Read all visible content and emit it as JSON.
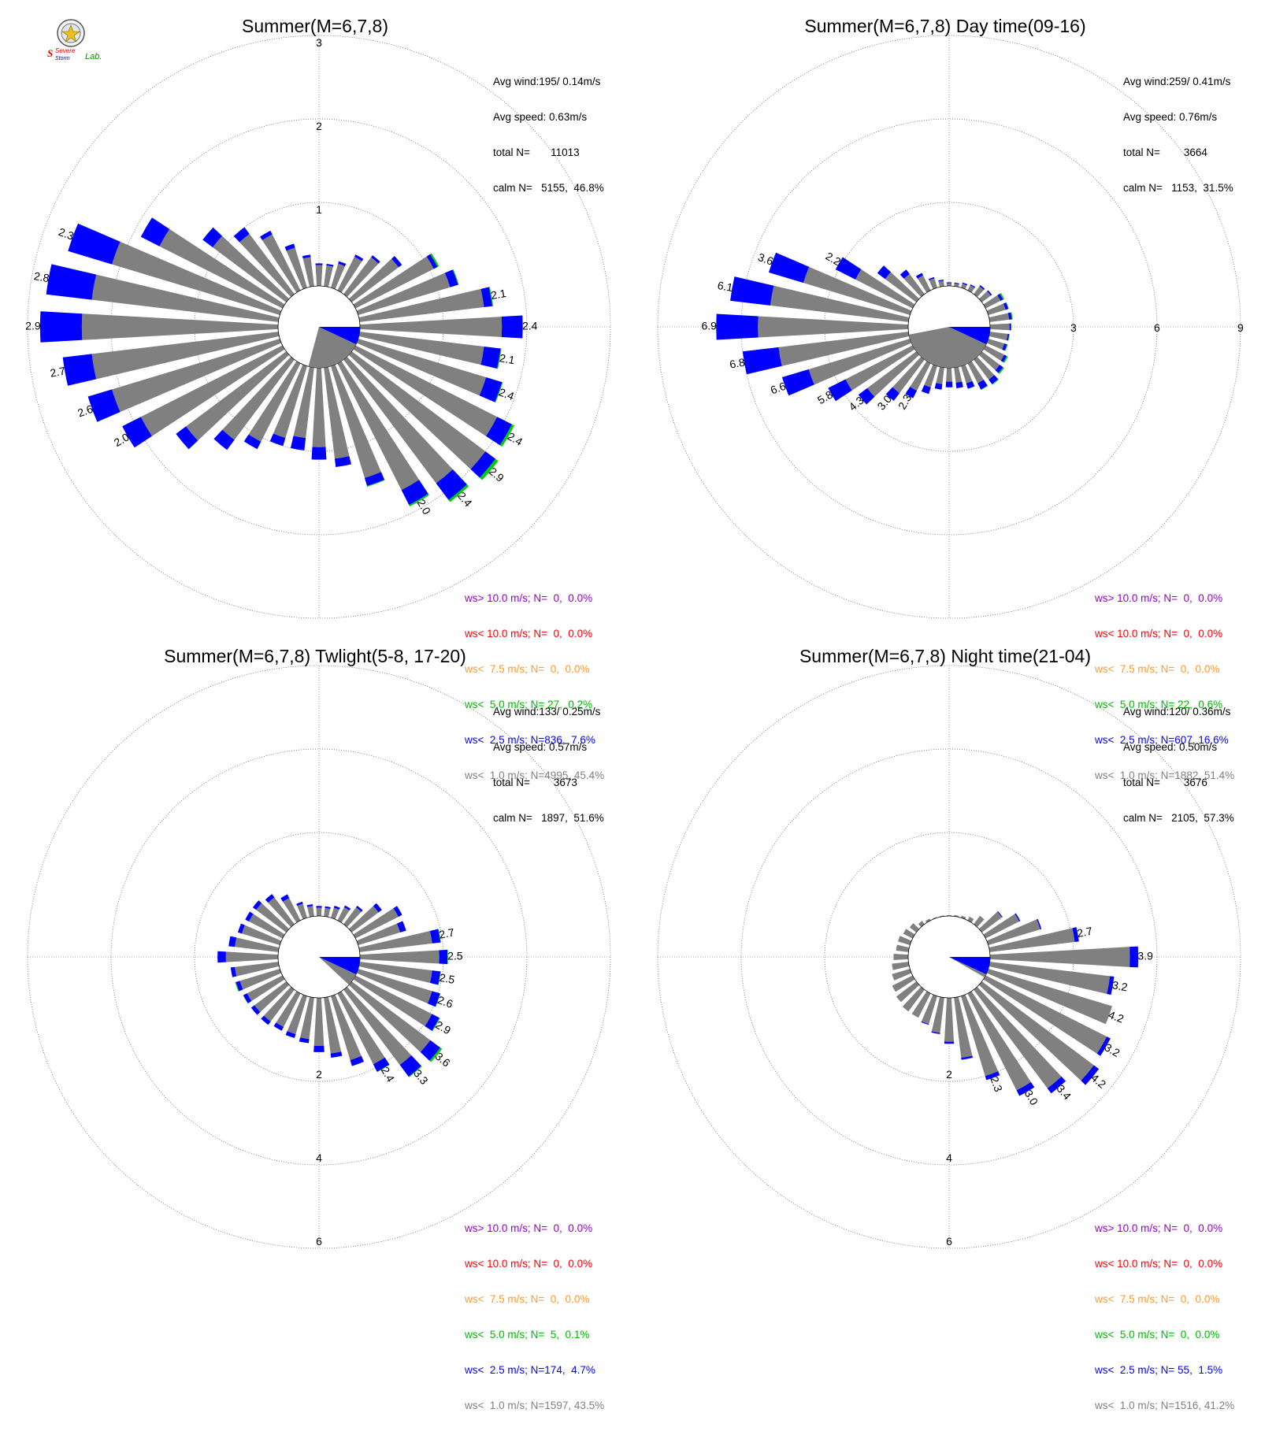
{
  "colors": {
    "gray": "#808080",
    "blue": "#0000ff",
    "green": "#00cc00",
    "orange": "#ff9933",
    "red": "#ff0000",
    "purple": "#9900cc"
  },
  "logo": {
    "line1": "Severe",
    "line2": "Storm",
    "line3": "Lab."
  },
  "legend_labels": [
    "ws> 10.0 m/s; N=",
    "ws< 10.0 m/s; N=",
    "ws<  7.5 m/s; N=",
    "ws<  5.0 m/s; N=",
    "ws<  2.5 m/s; N=",
    "ws<  1.0 m/s; N="
  ],
  "panels": [
    {
      "title": "Summer(M=6,7,8)",
      "stats": {
        "avg_wind": "Avg wind:195/ 0.14m/s",
        "avg_speed": "Avg speed: 0.63m/s",
        "total_n": "total N=       11013",
        "calm_n": "calm N=   5155,  46.8%"
      },
      "legend_values": [
        "  0,  0.0%",
        "  0,  0.0%",
        "  0,  0.0%",
        " 27,  0.2%",
        "836,  7.6%",
        "4995, 45.4%"
      ],
      "chart_data": {
        "type": "wind-rose",
        "title": "Summer(M=6,7,8)",
        "rmax": 3,
        "ring_labels": [
          "1",
          "2",
          "3"
        ],
        "label_axis": "north",
        "sector_width_deg": 10,
        "directions": [
          0,
          10,
          20,
          30,
          40,
          50,
          60,
          70,
          80,
          90,
          100,
          110,
          120,
          130,
          140,
          150,
          160,
          170,
          180,
          190,
          200,
          210,
          220,
          230,
          240,
          250,
          260,
          270,
          280,
          290,
          300,
          310,
          320,
          330,
          340,
          350
        ],
        "series": [
          {
            "name": "ws<  1.0 m/s",
            "color": "gray",
            "values": [
              0.25,
              0.25,
              0.3,
              0.45,
              0.55,
              0.7,
              1.05,
              1.15,
              1.5,
              1.7,
              1.5,
              1.6,
              1.9,
              2.0,
              1.85,
              1.7,
              1.4,
              1.1,
              0.95,
              0.85,
              0.9,
              1.05,
              1.2,
              1.5,
              1.9,
              2.1,
              2.25,
              2.35,
              2.25,
              2.1,
              1.65,
              1.1,
              0.9,
              0.75,
              0.5,
              0.35
            ]
          },
          {
            "name": "ws<  2.5 m/s",
            "color": "blue",
            "values": [
              0.02,
              0.02,
              0.03,
              0.03,
              0.03,
              0.05,
              0.05,
              0.1,
              0.1,
              0.25,
              0.2,
              0.2,
              0.2,
              0.15,
              0.25,
              0.2,
              0.1,
              0.1,
              0.15,
              0.15,
              0.1,
              0.1,
              0.15,
              0.15,
              0.25,
              0.3,
              0.35,
              0.5,
              0.55,
              0.55,
              0.25,
              0.15,
              0.1,
              0.05,
              0.05,
              0.03
            ]
          },
          {
            "name": "ws<  5.0 m/s",
            "color": "green",
            "values": [
              0,
              0,
              0,
              0,
              0,
              0,
              0.02,
              0.01,
              0.01,
              0,
              0.01,
              0.01,
              0.03,
              0.04,
              0.03,
              0.02,
              0.01,
              0,
              0,
              0,
              0,
              0,
              0,
              0,
              0,
              0,
              0,
              0,
              0,
              0,
              0,
              0,
              0,
              0,
              0,
              0
            ]
          }
        ],
        "speed_labels": [
          {
            "dir": 80,
            "text": "2.1"
          },
          {
            "dir": 90,
            "text": "2.4"
          },
          {
            "dir": 100,
            "text": "2.1"
          },
          {
            "dir": 110,
            "text": "2.4"
          },
          {
            "dir": 120,
            "text": "2.4"
          },
          {
            "dir": 130,
            "text": "2.9"
          },
          {
            "dir": 140,
            "text": "2.4"
          },
          {
            "dir": 150,
            "text": "2.0"
          },
          {
            "dir": 240,
            "text": "2.0"
          },
          {
            "dir": 250,
            "text": "2.6"
          },
          {
            "dir": 260,
            "text": "2.7"
          },
          {
            "dir": 270,
            "text": "2.9"
          },
          {
            "dir": 280,
            "text": "2.8"
          },
          {
            "dir": 290,
            "text": "2.3"
          }
        ],
        "mean_vector_dir": 195
      }
    },
    {
      "title": "Summer(M=6,7,8) Day time(09-16)",
      "stats": {
        "avg_wind": "Avg wind:259/ 0.41m/s",
        "avg_speed": "Avg speed: 0.76m/s",
        "total_n": "total N=        3664",
        "calm_n": "calm N=   1153,  31.5%"
      },
      "legend_values": [
        "  0,  0.0%",
        "  0,  0.0%",
        "  0,  0.0%",
        " 22,  0.6%",
        "607, 16.6%",
        "1882, 51.4%"
      ],
      "chart_data": {
        "type": "wind-rose",
        "title": "Summer(M=6,7,8) Day time(09-16)",
        "rmax": 9,
        "ring_labels": [
          "3",
          "6",
          "9"
        ],
        "label_axis": "east",
        "sector_width_deg": 10,
        "directions": [
          0,
          10,
          20,
          30,
          40,
          50,
          60,
          70,
          80,
          90,
          100,
          110,
          120,
          130,
          140,
          150,
          160,
          170,
          180,
          190,
          200,
          210,
          220,
          230,
          240,
          250,
          260,
          270,
          280,
          290,
          300,
          310,
          320,
          330,
          340,
          350
        ],
        "series": [
          {
            "name": "ws<  1.0 m/s",
            "color": "gray",
            "values": [
              0.1,
              0.1,
              0.15,
              0.2,
              0.35,
              0.4,
              0.6,
              0.65,
              0.7,
              0.7,
              0.65,
              0.6,
              0.75,
              0.8,
              0.9,
              0.8,
              0.65,
              0.55,
              0.5,
              0.6,
              0.8,
              1.1,
              1.5,
              2.2,
              2.7,
              3.8,
              4.7,
              5.4,
              5.0,
              4.0,
              2.3,
              1.4,
              0.9,
              0.6,
              0.35,
              0.2
            ]
          },
          {
            "name": "ws<  2.5 m/s",
            "color": "blue",
            "values": [
              0.03,
              0.03,
              0.04,
              0.04,
              0.05,
              0.05,
              0.1,
              0.1,
              0.1,
              0.05,
              0.05,
              0.1,
              0.1,
              0.15,
              0.2,
              0.25,
              0.2,
              0.2,
              0.2,
              0.2,
              0.25,
              0.3,
              0.35,
              0.4,
              0.7,
              1.0,
              1.3,
              1.5,
              1.45,
              1.3,
              0.8,
              0.35,
              0.2,
              0.1,
              0.05,
              0.04
            ]
          },
          {
            "name": "ws<  5.0 m/s",
            "color": "green",
            "values": [
              0,
              0,
              0,
              0,
              0,
              0,
              0.05,
              0.02,
              0.03,
              0.02,
              0.02,
              0.03,
              0.05,
              0.05,
              0.03,
              0.02,
              0.01,
              0,
              0,
              0,
              0,
              0,
              0,
              0,
              0,
              0,
              0,
              0,
              0,
              0,
              0,
              0,
              0,
              0,
              0,
              0
            ]
          }
        ],
        "speed_labels": [
          {
            "dir": 210,
            "text": "2.3"
          },
          {
            "dir": 220,
            "text": "3.0"
          },
          {
            "dir": 230,
            "text": "4.3"
          },
          {
            "dir": 240,
            "text": "5.8"
          },
          {
            "dir": 250,
            "text": "6.6"
          },
          {
            "dir": 260,
            "text": "6.8"
          },
          {
            "dir": 270,
            "text": "6.9"
          },
          {
            "dir": 280,
            "text": "6.1"
          },
          {
            "dir": 290,
            "text": "3.6"
          },
          {
            "dir": 300,
            "text": "2.2"
          }
        ],
        "mean_vector_dir": 259
      }
    },
    {
      "title": "Summer(M=6,7,8) Twlight(5-8, 17-20)",
      "stats": {
        "avg_wind": "Avg wind:133/ 0.25m/s",
        "avg_speed": "Avg speed: 0.57m/s",
        "total_n": "total N=        3673",
        "calm_n": "calm N=   1897,  51.6%"
      },
      "legend_values": [
        "  0,  0.0%",
        "  0,  0.0%",
        "  0,  0.0%",
        "  5,  0.1%",
        "174,  4.7%",
        "1597, 43.5%"
      ],
      "chart_data": {
        "type": "wind-rose",
        "title": "Summer(M=6,7,8) Twlight(5-8, 17-20)",
        "rmax": 6,
        "ring_labels": [
          "2",
          "4",
          "6"
        ],
        "label_axis": "south",
        "sector_width_deg": 10,
        "directions": [
          0,
          10,
          20,
          30,
          40,
          50,
          60,
          70,
          80,
          90,
          100,
          110,
          120,
          130,
          140,
          150,
          160,
          170,
          180,
          190,
          200,
          210,
          220,
          230,
          240,
          250,
          260,
          270,
          280,
          290,
          300,
          310,
          320,
          330,
          340,
          350
        ],
        "series": [
          {
            "name": "ws<  1.0 m/s",
            "color": "gray",
            "values": [
              0.2,
              0.2,
              0.25,
              0.35,
              0.5,
              0.8,
              1.15,
              1.05,
              1.75,
              1.9,
              1.75,
              1.85,
              2.05,
              2.35,
              2.25,
              1.9,
              1.6,
              1.35,
              1.15,
              1.0,
              0.95,
              0.9,
              0.95,
              0.95,
              0.95,
              1.0,
              1.05,
              1.25,
              1.05,
              0.95,
              0.9,
              0.9,
              0.8,
              0.6,
              0.35,
              0.25
            ]
          },
          {
            "name": "ws<  2.5 m/s",
            "color": "blue",
            "values": [
              0.04,
              0.04,
              0.05,
              0.05,
              0.05,
              0.1,
              0.1,
              0.15,
              0.2,
              0.2,
              0.2,
              0.2,
              0.2,
              0.3,
              0.35,
              0.2,
              0.15,
              0.1,
              0.15,
              0.1,
              0.1,
              0.1,
              0.1,
              0.1,
              0.1,
              0.1,
              0.1,
              0.2,
              0.15,
              0.1,
              0.1,
              0.1,
              0.1,
              0.1,
              0.05,
              0.04
            ]
          },
          {
            "name": "ws<  5.0 m/s",
            "color": "green",
            "values": [
              0,
              0,
              0,
              0,
              0,
              0,
              0,
              0,
              0.01,
              0.01,
              0.01,
              0.01,
              0.02,
              0.05,
              0.02,
              0.01,
              0,
              0,
              0,
              0,
              0,
              0,
              0,
              0,
              0.01,
              0.02,
              0,
              0,
              0,
              0,
              0,
              0,
              0,
              0,
              0,
              0
            ]
          }
        ],
        "speed_labels": [
          {
            "dir": 80,
            "text": "2.7"
          },
          {
            "dir": 90,
            "text": "2.5"
          },
          {
            "dir": 100,
            "text": "2.5"
          },
          {
            "dir": 110,
            "text": "2.6"
          },
          {
            "dir": 120,
            "text": "2.9"
          },
          {
            "dir": 130,
            "text": "3.6"
          },
          {
            "dir": 140,
            "text": "3.3"
          },
          {
            "dir": 150,
            "text": "2.4"
          }
        ],
        "mean_vector_dir": 133
      }
    },
    {
      "title": "Summer(M=6,7,8) Night time(21-04)",
      "stats": {
        "avg_wind": "Avg wind:120/ 0.36m/s",
        "avg_speed": "Avg speed: 0.50m/s",
        "total_n": "total N=        3676",
        "calm_n": "calm N=   2105,  57.3%"
      },
      "legend_values": [
        "  0,  0.0%",
        "  0,  0.0%",
        "  0,  0.0%",
        "  0,  0.0%",
        " 55,  1.5%",
        "1516, 41.2%"
      ],
      "chart_data": {
        "type": "wind-rose",
        "title": "Summer(M=6,7,8) Night time(21-04)",
        "rmax": 6,
        "ring_labels": [
          "2",
          "4",
          "6"
        ],
        "label_axis": "south",
        "sector_width_deg": 10,
        "directions": [
          0,
          10,
          20,
          30,
          40,
          50,
          60,
          70,
          80,
          90,
          100,
          110,
          120,
          130,
          140,
          150,
          160,
          170,
          180,
          190,
          200,
          210,
          220,
          230,
          240,
          250,
          260,
          270,
          280,
          290,
          300,
          310,
          320,
          330,
          340,
          350
        ],
        "series": [
          {
            "name": "ws<  1.0 m/s",
            "color": "gray",
            "values": [
              0.02,
              0.03,
              0.05,
              0.1,
              0.25,
              0.6,
              0.9,
              1.3,
              2.05,
              3.35,
              2.9,
              3.1,
              3.25,
              3.35,
              2.95,
              2.6,
              2.0,
              1.45,
              1.05,
              0.85,
              0.7,
              0.65,
              0.65,
              0.6,
              0.55,
              0.45,
              0.4,
              0.35,
              0.3,
              0.3,
              0.25,
              0.2,
              0.1,
              0.05,
              0.02,
              0.02
            ]
          },
          {
            "name": "ws<  2.5 m/s",
            "color": "blue",
            "values": [
              0,
              0,
              0,
              0,
              0,
              0.02,
              0.03,
              0.03,
              0.1,
              0.2,
              0.1,
              0,
              0.1,
              0.15,
              0.15,
              0.15,
              0.1,
              0.05,
              0.05,
              0.03,
              0.02,
              0,
              0,
              0,
              0,
              0,
              0,
              0,
              0,
              0,
              0,
              0,
              0,
              0,
              0,
              0
            ]
          },
          {
            "name": "ws<  5.0 m/s",
            "color": "green",
            "values": [
              0,
              0,
              0,
              0,
              0,
              0,
              0,
              0,
              0,
              0,
              0,
              0,
              0,
              0,
              0,
              0,
              0,
              0,
              0,
              0,
              0,
              0,
              0,
              0,
              0,
              0,
              0,
              0,
              0,
              0,
              0,
              0,
              0,
              0,
              0,
              0
            ]
          }
        ],
        "speed_labels": [
          {
            "dir": 80,
            "text": "2.7"
          },
          {
            "dir": 90,
            "text": "3.9"
          },
          {
            "dir": 100,
            "text": "3.2"
          },
          {
            "dir": 110,
            "text": "4.2"
          },
          {
            "dir": 120,
            "text": "3.2"
          },
          {
            "dir": 130,
            "text": "4.2"
          },
          {
            "dir": 140,
            "text": "3.4"
          },
          {
            "dir": 150,
            "text": "3.0"
          },
          {
            "dir": 160,
            "text": "2.3"
          }
        ],
        "mean_vector_dir": 120
      }
    }
  ]
}
